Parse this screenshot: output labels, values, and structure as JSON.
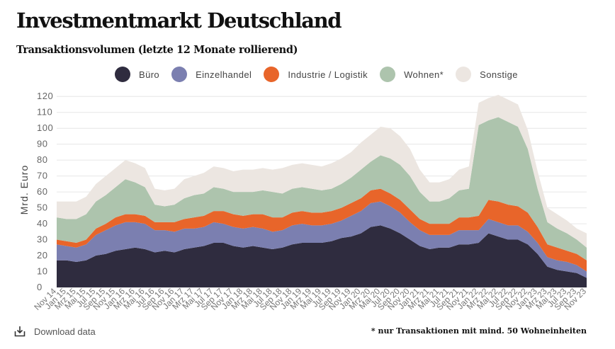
{
  "title": "Investmentmarkt Deutschland",
  "subtitle": "Transaktionsvolumen (letzte 12 Monate rollierend)",
  "legend": [
    {
      "label": "Büro",
      "color": "#2f2c3f"
    },
    {
      "label": "Einzelhandel",
      "color": "#7b7fb0"
    },
    {
      "label": "Industrie / Logistik",
      "color": "#e8652a"
    },
    {
      "label": "Wohnen*",
      "color": "#adc4ad"
    },
    {
      "label": "Sonstige",
      "color": "#ece6e1"
    }
  ],
  "footer": {
    "download_label": "Download data",
    "download_icon": "download-icon",
    "footnote": "* nur Transaktionen mit mind. 50 Wohneinheiten"
  },
  "chart_data": {
    "type": "area",
    "stacked": true,
    "title": "Transaktionsvolumen (letzte 12 Monate rollierend)",
    "ylabel": "Mrd. Euro",
    "ylim": [
      0,
      125
    ],
    "yticks": [
      0,
      10,
      20,
      30,
      40,
      50,
      60,
      70,
      80,
      90,
      100,
      110,
      120
    ],
    "categories": [
      "Nov 14",
      "Jan 15",
      "Mrz 15",
      "Mai 15",
      "Jul 15",
      "Sep 15",
      "Nov 15",
      "Jan 16",
      "Mrz 16",
      "Mai 16",
      "Jul 16",
      "Sep 16",
      "Nov 16",
      "Jan 17",
      "Mrz 17",
      "Mai 17",
      "Jul 17",
      "Sep 17",
      "Nov 17",
      "Jan 18",
      "Mrz 18",
      "Mai 18",
      "Jul 18",
      "Sep 18",
      "Nov 18",
      "Jan 19",
      "Mrz 19",
      "Mai 19",
      "Jul 19",
      "Sep 19",
      "Nov 19",
      "Jan 20",
      "Mrz 20",
      "Mai 20",
      "Jul 20",
      "Sep 20",
      "Nov 20",
      "Jan 21",
      "Mrz 21",
      "Mai 21",
      "Jul 21",
      "Sep 21",
      "Nov 21",
      "Jan 22",
      "Mrz 22",
      "Mai 22",
      "Jul 22",
      "Sep 22",
      "Nov 22",
      "Jan 23",
      "Mrz 23",
      "Mai 23",
      "Jul 23",
      "Sep 23",
      "Nov 23"
    ],
    "series": [
      {
        "name": "Büro",
        "values": [
          17,
          17,
          16,
          17,
          20,
          21,
          23,
          24,
          25,
          24,
          22,
          23,
          22,
          24,
          25,
          26,
          28,
          28,
          26,
          25,
          26,
          25,
          24,
          25,
          27,
          28,
          28,
          28,
          29,
          31,
          32,
          34,
          38,
          39,
          37,
          34,
          30,
          26,
          24,
          25,
          25,
          27,
          27,
          28,
          34,
          32,
          30,
          30,
          27,
          21,
          13,
          11,
          10,
          9,
          6
        ]
      },
      {
        "name": "Einzelhandel",
        "values": [
          10,
          9,
          9,
          10,
          13,
          15,
          16,
          17,
          16,
          16,
          14,
          13,
          13,
          13,
          12,
          12,
          13,
          12,
          12,
          12,
          12,
          12,
          11,
          11,
          12,
          12,
          11,
          11,
          11,
          11,
          13,
          14,
          15,
          15,
          14,
          13,
          11,
          10,
          9,
          8,
          8,
          9,
          9,
          8,
          9,
          9,
          9,
          9,
          8,
          7,
          6,
          6,
          6,
          5,
          4
        ]
      },
      {
        "name": "Industrie / Logistik",
        "values": [
          3,
          3,
          3,
          3,
          4,
          4,
          5,
          5,
          5,
          5,
          5,
          5,
          6,
          6,
          7,
          7,
          7,
          8,
          8,
          8,
          8,
          9,
          9,
          8,
          8,
          8,
          8,
          8,
          8,
          8,
          8,
          8,
          8,
          8,
          8,
          8,
          8,
          7,
          7,
          7,
          7,
          8,
          8,
          9,
          12,
          13,
          13,
          12,
          12,
          10,
          8,
          8,
          7,
          7,
          7
        ]
      },
      {
        "name": "Wohnen*",
        "values": [
          14,
          14,
          15,
          16,
          17,
          18,
          19,
          22,
          20,
          18,
          11,
          10,
          11,
          13,
          14,
          14,
          15,
          14,
          14,
          15,
          14,
          15,
          16,
          15,
          15,
          15,
          15,
          14,
          14,
          15,
          16,
          18,
          18,
          21,
          22,
          22,
          21,
          17,
          14,
          14,
          16,
          17,
          18,
          57,
          50,
          53,
          52,
          50,
          40,
          24,
          14,
          12,
          11,
          9,
          8
        ]
      },
      {
        "name": "Sonstige",
        "values": [
          10,
          11,
          11,
          11,
          11,
          12,
          12,
          12,
          12,
          12,
          10,
          10,
          10,
          12,
          12,
          13,
          13,
          13,
          13,
          14,
          14,
          14,
          14,
          16,
          15,
          15,
          15,
          15,
          16,
          16,
          16,
          17,
          17,
          18,
          19,
          18,
          17,
          14,
          12,
          12,
          12,
          13,
          14,
          14,
          14,
          14,
          14,
          14,
          12,
          11,
          9,
          9,
          8,
          7,
          9
        ]
      }
    ]
  }
}
